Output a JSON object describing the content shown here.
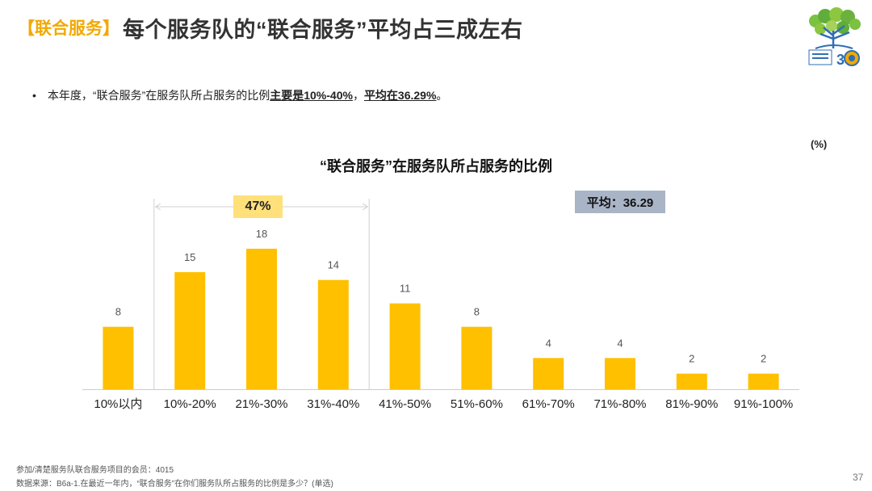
{
  "header": {
    "tag": "【联合服务】",
    "title": "每个服务队的“联合服务”平均占三成左右"
  },
  "bullet": {
    "dot": "•",
    "prefix": "本年度，“联合服务”在服务队所占服务的比例",
    "emph1": "主要是10%-40%",
    "mid": "，",
    "emph2": "平均在36.29%",
    "suffix": "。"
  },
  "unit_label": "(%)",
  "bracket_label": "47%",
  "average_label": "平均：36.29",
  "chart_data": {
    "type": "bar",
    "title": "“联合服务”在服务队所占服务的比例",
    "categories": [
      "10%以内",
      "10%-20%",
      "21%-30%",
      "31%-40%",
      "41%-50%",
      "51%-60%",
      "61%-70%",
      "71%-80%",
      "81%-90%",
      "91%-100%"
    ],
    "values": [
      8,
      15,
      18,
      14,
      11,
      8,
      4,
      4,
      2,
      2
    ],
    "value_labels": [
      "8",
      "15",
      "18",
      "14",
      "11",
      "8",
      "4",
      "4",
      "2",
      "2"
    ],
    "bar_color": "#ffc000",
    "ylim": [
      0,
      18
    ],
    "grid": false,
    "legend": "none",
    "bracket": {
      "from_category": "10%-20%",
      "to_category": "31%-40%",
      "label": "47%"
    },
    "average": 36.29
  },
  "footer": {
    "note1": "参加/清楚服务队联合服务项目的会员：4015",
    "note2": "数据来源：B6a-1.在最近一年内，“联合服务”在你们服务队所占服务的比例是多少？(单选)",
    "page": "37"
  },
  "colors": {
    "accent": "#f2a900",
    "bar": "#ffc000",
    "badge": "#ffe07a",
    "avg_box": "#a9b4c6",
    "title_gray": "#333333"
  }
}
